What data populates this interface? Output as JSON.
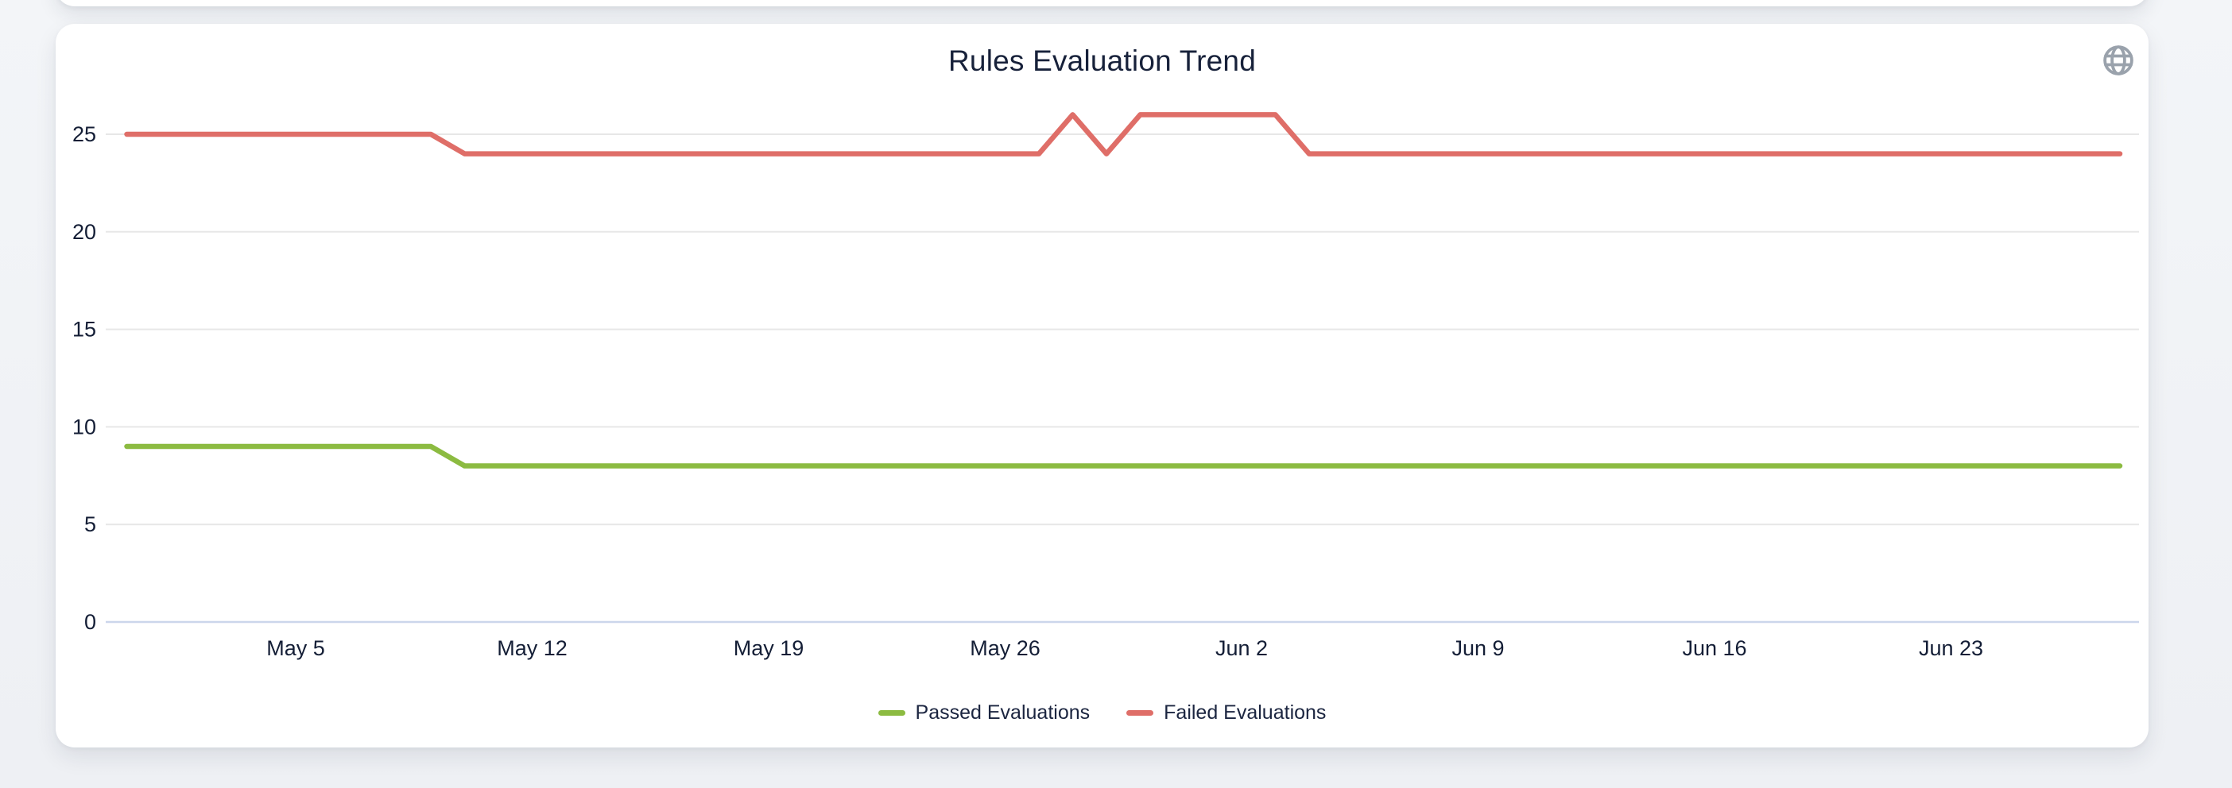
{
  "card": {
    "title": "Rules Evaluation Trend",
    "toolbar": {
      "globe_icon": "globe-icon"
    }
  },
  "theme": {
    "page_bg": "#f1f3f6",
    "card_bg": "#ffffff",
    "title_color": "#17213a",
    "tick_text_color": "#141e36",
    "legend_text_color": "#1b2540",
    "grid_color": "#e7e7e7",
    "axis_line_color": "#ccd6eb",
    "icon_color": "#9aa2ac",
    "passed_color": "#8cbb41",
    "failed_color": "#df6e68"
  },
  "chart_data": {
    "type": "line",
    "title": "Rules Evaluation Trend",
    "xlabel": "",
    "ylabel": "",
    "ylim": [
      0,
      25
    ],
    "yticks": [
      0,
      5,
      10,
      15,
      20,
      25
    ],
    "grid": true,
    "legend_position": "bottom",
    "x": [
      "Apr 30",
      "May 1",
      "May 2",
      "May 3",
      "May 4",
      "May 5",
      "May 6",
      "May 7",
      "May 8",
      "May 9",
      "May 10",
      "May 11",
      "May 12",
      "May 13",
      "May 14",
      "May 15",
      "May 16",
      "May 17",
      "May 18",
      "May 19",
      "May 20",
      "May 21",
      "May 22",
      "May 23",
      "May 24",
      "May 25",
      "May 26",
      "May 27",
      "May 28",
      "May 29",
      "May 30",
      "May 31",
      "Jun 1",
      "Jun 2",
      "Jun 3",
      "Jun 4",
      "Jun 5",
      "Jun 6",
      "Jun 7",
      "Jun 8",
      "Jun 9",
      "Jun 10",
      "Jun 11",
      "Jun 12",
      "Jun 13",
      "Jun 14",
      "Jun 15",
      "Jun 16",
      "Jun 17",
      "Jun 18",
      "Jun 19",
      "Jun 20",
      "Jun 21",
      "Jun 22",
      "Jun 23",
      "Jun 24",
      "Jun 25",
      "Jun 26",
      "Jun 27",
      "Jun 28"
    ],
    "xtick_labels": [
      "May 5",
      "May 12",
      "May 19",
      "May 26",
      "Jun 2",
      "Jun 9",
      "Jun 16",
      "Jun 23"
    ],
    "series": [
      {
        "name": "Passed Evaluations",
        "color": "#8cbb41",
        "values": [
          9,
          9,
          9,
          9,
          9,
          9,
          9,
          9,
          9,
          9,
          8,
          8,
          8,
          8,
          8,
          8,
          8,
          8,
          8,
          8,
          8,
          8,
          8,
          8,
          8,
          8,
          8,
          8,
          8,
          8,
          8,
          8,
          8,
          8,
          8,
          8,
          8,
          8,
          8,
          8,
          8,
          8,
          8,
          8,
          8,
          8,
          8,
          8,
          8,
          8,
          8,
          8,
          8,
          8,
          8,
          8,
          8,
          8,
          8,
          8
        ]
      },
      {
        "name": "Failed Evaluations",
        "color": "#df6e68",
        "values": [
          25,
          25,
          25,
          25,
          25,
          25,
          25,
          25,
          25,
          25,
          24,
          24,
          24,
          24,
          24,
          24,
          24,
          24,
          24,
          24,
          24,
          24,
          24,
          24,
          24,
          24,
          24,
          24,
          26,
          24,
          26,
          26,
          26,
          26,
          26,
          24,
          24,
          24,
          24,
          24,
          24,
          24,
          24,
          24,
          24,
          24,
          24,
          24,
          24,
          24,
          24,
          24,
          24,
          24,
          24,
          24,
          24,
          24,
          24,
          24
        ]
      }
    ]
  }
}
